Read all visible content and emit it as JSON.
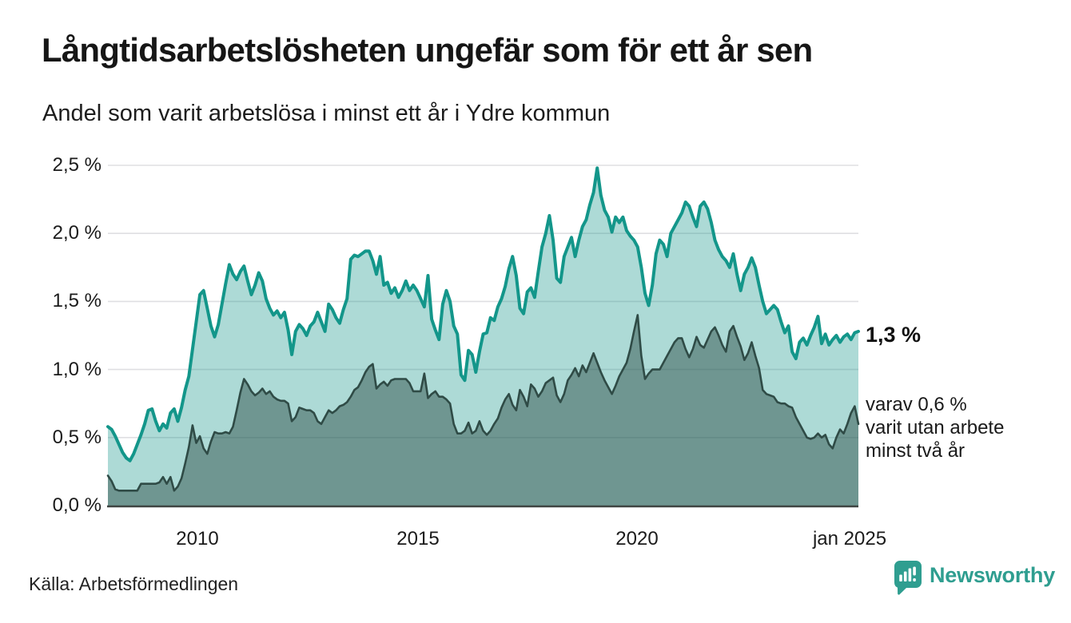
{
  "header": {
    "title": "Långtidsarbetslösheten ungefär som för ett år sen",
    "subtitle": "Andel som varit arbetslösa i minst ett år i Ydre kommun"
  },
  "annotations": {
    "latest_total_label": "1,3 %",
    "subset_note_lines": [
      "varav 0,6 %",
      "varit utan arbete",
      "minst två år"
    ]
  },
  "footer": {
    "source": "Källa: Arbetsförmedlingen",
    "brand": "Newsworthy"
  },
  "colors": {
    "teal_line": "#13968a",
    "teal_fill": "rgba(19,150,138,0.35)",
    "dark_line": "#2f4b46",
    "dark_fill": "rgba(47,79,74,0.49)",
    "gridline": "#dfdfe2",
    "axis_baseline": "#3f4442",
    "logo_teal": "#2f9e90",
    "text": "#1b1b1b"
  },
  "chart_data": {
    "type": "area",
    "title": "Långtidsarbetslösheten ungefär som för ett år sen",
    "subtitle": "Andel som varit arbetslösa i minst ett år i Ydre kommun",
    "unit": "%",
    "frequency": "monthly",
    "x_start": "2008-01",
    "x_end": "2025-01",
    "ylim": [
      0,
      2.5
    ],
    "grid": "horizontal",
    "legend": "none, direct end-of-line labels",
    "x_tick_labels": [
      "2010",
      "2015",
      "2020",
      "jan 2025"
    ],
    "y_tick_labels": [
      "0,0 %",
      "0,5 %",
      "1,0 %",
      "1,5 %",
      "2,0 %",
      "2,5 %"
    ],
    "series": [
      {
        "name": "Andel arbetslösa minst ett år",
        "end_label": "1,3 %",
        "color": "#13968a",
        "fill": "rgba(19,150,138,0.35)",
        "stroke_width": 4,
        "values": [
          0.58,
          0.56,
          0.51,
          0.45,
          0.39,
          0.35,
          0.33,
          0.38,
          0.45,
          0.52,
          0.6,
          0.7,
          0.71,
          0.62,
          0.55,
          0.6,
          0.57,
          0.68,
          0.71,
          0.62,
          0.72,
          0.85,
          0.95,
          1.15,
          1.35,
          1.55,
          1.58,
          1.45,
          1.32,
          1.24,
          1.33,
          1.48,
          1.63,
          1.77,
          1.7,
          1.66,
          1.72,
          1.76,
          1.65,
          1.55,
          1.62,
          1.71,
          1.65,
          1.52,
          1.45,
          1.4,
          1.43,
          1.38,
          1.42,
          1.29,
          1.11,
          1.28,
          1.33,
          1.3,
          1.25,
          1.32,
          1.35,
          1.42,
          1.35,
          1.28,
          1.48,
          1.44,
          1.38,
          1.34,
          1.44,
          1.52,
          1.81,
          1.84,
          1.83,
          1.85,
          1.87,
          1.87,
          1.8,
          1.7,
          1.83,
          1.62,
          1.64,
          1.56,
          1.6,
          1.53,
          1.58,
          1.65,
          1.58,
          1.62,
          1.58,
          1.52,
          1.46,
          1.69,
          1.37,
          1.29,
          1.22,
          1.48,
          1.58,
          1.5,
          1.32,
          1.26,
          0.96,
          0.92,
          1.14,
          1.11,
          0.98,
          1.13,
          1.26,
          1.27,
          1.38,
          1.36,
          1.46,
          1.52,
          1.61,
          1.74,
          1.83,
          1.69,
          1.45,
          1.41,
          1.57,
          1.6,
          1.53,
          1.72,
          1.9,
          2.0,
          2.13,
          1.95,
          1.67,
          1.64,
          1.83,
          1.9,
          1.97,
          1.83,
          1.95,
          2.05,
          2.1,
          2.21,
          2.3,
          2.48,
          2.28,
          2.17,
          2.12,
          2.01,
          2.12,
          2.08,
          2.12,
          2.02,
          1.98,
          1.95,
          1.9,
          1.75,
          1.56,
          1.47,
          1.62,
          1.85,
          1.95,
          1.92,
          1.83,
          2.0,
          2.05,
          2.1,
          2.15,
          2.23,
          2.2,
          2.12,
          2.05,
          2.2,
          2.23,
          2.18,
          2.08,
          1.95,
          1.88,
          1.83,
          1.8,
          1.75,
          1.85,
          1.7,
          1.58,
          1.7,
          1.75,
          1.82,
          1.75,
          1.62,
          1.5,
          1.41,
          1.44,
          1.47,
          1.44,
          1.35,
          1.27,
          1.32,
          1.13,
          1.08,
          1.2,
          1.23,
          1.18,
          1.25,
          1.31,
          1.39,
          1.19,
          1.26,
          1.18,
          1.22,
          1.25,
          1.2,
          1.24,
          1.26,
          1.22,
          1.27,
          1.28
        ]
      },
      {
        "name": "Andel arbetslösa minst två år",
        "end_label": "varav 0,6 % varit utan arbete minst två år",
        "color": "#2f4b46",
        "fill": "rgba(47,79,74,0.49)",
        "stroke_width": 2.6,
        "values": [
          0.22,
          0.18,
          0.12,
          0.11,
          0.11,
          0.11,
          0.11,
          0.11,
          0.11,
          0.16,
          0.16,
          0.16,
          0.16,
          0.16,
          0.17,
          0.21,
          0.16,
          0.21,
          0.11,
          0.14,
          0.2,
          0.31,
          0.43,
          0.59,
          0.46,
          0.51,
          0.42,
          0.38,
          0.47,
          0.54,
          0.53,
          0.53,
          0.54,
          0.53,
          0.58,
          0.7,
          0.83,
          0.93,
          0.89,
          0.84,
          0.81,
          0.83,
          0.86,
          0.82,
          0.84,
          0.8,
          0.78,
          0.77,
          0.77,
          0.75,
          0.62,
          0.65,
          0.72,
          0.71,
          0.7,
          0.7,
          0.68,
          0.62,
          0.6,
          0.65,
          0.7,
          0.68,
          0.7,
          0.73,
          0.74,
          0.76,
          0.8,
          0.85,
          0.87,
          0.92,
          0.98,
          1.02,
          1.04,
          0.86,
          0.89,
          0.91,
          0.88,
          0.92,
          0.93,
          0.93,
          0.93,
          0.93,
          0.9,
          0.84,
          0.84,
          0.84,
          0.97,
          0.79,
          0.82,
          0.84,
          0.8,
          0.8,
          0.78,
          0.75,
          0.6,
          0.53,
          0.53,
          0.55,
          0.61,
          0.53,
          0.55,
          0.62,
          0.55,
          0.52,
          0.55,
          0.6,
          0.64,
          0.72,
          0.78,
          0.82,
          0.74,
          0.7,
          0.85,
          0.8,
          0.73,
          0.89,
          0.86,
          0.8,
          0.84,
          0.9,
          0.92,
          0.94,
          0.81,
          0.76,
          0.82,
          0.92,
          0.96,
          1.01,
          0.95,
          1.03,
          0.98,
          1.05,
          1.12,
          1.05,
          0.98,
          0.92,
          0.87,
          0.82,
          0.88,
          0.95,
          1.0,
          1.05,
          1.15,
          1.28,
          1.4,
          1.1,
          0.93,
          0.97,
          1.0,
          1.0,
          1.0,
          1.05,
          1.1,
          1.15,
          1.2,
          1.23,
          1.23,
          1.15,
          1.09,
          1.15,
          1.24,
          1.18,
          1.16,
          1.22,
          1.28,
          1.31,
          1.25,
          1.18,
          1.13,
          1.28,
          1.32,
          1.24,
          1.17,
          1.07,
          1.12,
          1.2,
          1.1,
          1.01,
          0.85,
          0.82,
          0.81,
          0.8,
          0.76,
          0.75,
          0.75,
          0.73,
          0.72,
          0.65,
          0.6,
          0.55,
          0.5,
          0.49,
          0.5,
          0.53,
          0.5,
          0.52,
          0.45,
          0.42,
          0.5,
          0.56,
          0.53,
          0.6,
          0.68,
          0.73,
          0.6
        ]
      }
    ]
  }
}
